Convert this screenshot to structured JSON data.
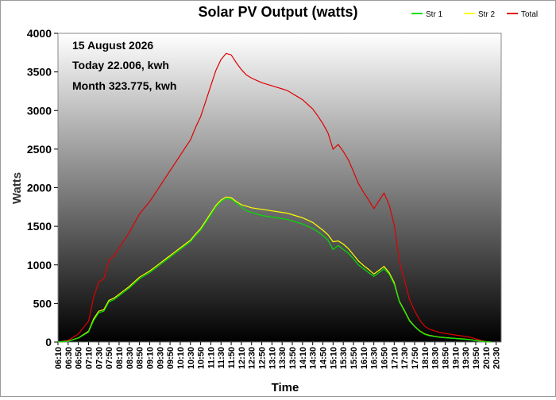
{
  "chart_data": {
    "type": "line",
    "title": "Solar PV Output (watts)",
    "xlabel": "Time",
    "ylabel": "Watts",
    "ylim": [
      0,
      4000
    ],
    "y_ticks": [
      0,
      500,
      1000,
      1500,
      2000,
      2500,
      3000,
      3500,
      4000
    ],
    "x_ticks": [
      "06:10",
      "06:30",
      "06:50",
      "07:10",
      "07:30",
      "07:50",
      "08:10",
      "08:30",
      "08:50",
      "09:10",
      "09:30",
      "09:50",
      "10:10",
      "10:30",
      "10:50",
      "11:10",
      "11:30",
      "11:50",
      "12:10",
      "12:30",
      "12:50",
      "13:10",
      "13:30",
      "13:50",
      "14:10",
      "14:30",
      "14:50",
      "15:10",
      "15:30",
      "15:50",
      "16:10",
      "16:30",
      "16:50",
      "17:10",
      "17:30",
      "17:50",
      "18:10",
      "18:30",
      "18:50",
      "19:10",
      "19:30",
      "19:50",
      "20:10",
      "20:30"
    ],
    "x_range": [
      "06:10",
      "20:40"
    ],
    "annotations": [
      "15 August 2026",
      "Today 22.006, kwh",
      "Month 323.775, kwh"
    ],
    "legend_position": "top-right",
    "grid": false,
    "background": "vertical gradient white (top) to black (bottom)",
    "series": [
      {
        "name": "Str 1",
        "color": "#00e000",
        "points": [
          [
            "06:10",
            0
          ],
          [
            "06:30",
            10
          ],
          [
            "06:50",
            50
          ],
          [
            "07:10",
            130
          ],
          [
            "07:20",
            280
          ],
          [
            "07:30",
            380
          ],
          [
            "07:40",
            400
          ],
          [
            "07:50",
            520
          ],
          [
            "08:00",
            550
          ],
          [
            "08:10",
            600
          ],
          [
            "08:20",
            650
          ],
          [
            "08:30",
            700
          ],
          [
            "08:40",
            760
          ],
          [
            "08:50",
            820
          ],
          [
            "09:00",
            860
          ],
          [
            "09:10",
            900
          ],
          [
            "09:20",
            950
          ],
          [
            "09:30",
            1000
          ],
          [
            "09:40",
            1050
          ],
          [
            "09:50",
            1100
          ],
          [
            "10:00",
            1150
          ],
          [
            "10:10",
            1200
          ],
          [
            "10:20",
            1250
          ],
          [
            "10:30",
            1300
          ],
          [
            "10:40",
            1380
          ],
          [
            "10:50",
            1450
          ],
          [
            "11:00",
            1550
          ],
          [
            "11:10",
            1650
          ],
          [
            "11:20",
            1750
          ],
          [
            "11:30",
            1820
          ],
          [
            "11:40",
            1860
          ],
          [
            "11:50",
            1850
          ],
          [
            "12:00",
            1800
          ],
          [
            "12:10",
            1750
          ],
          [
            "12:20",
            1700
          ],
          [
            "12:30",
            1680
          ],
          [
            "12:40",
            1660
          ],
          [
            "12:50",
            1640
          ],
          [
            "13:00",
            1630
          ],
          [
            "13:10",
            1620
          ],
          [
            "13:20",
            1610
          ],
          [
            "13:30",
            1600
          ],
          [
            "13:40",
            1590
          ],
          [
            "13:50",
            1570
          ],
          [
            "14:00",
            1550
          ],
          [
            "14:10",
            1530
          ],
          [
            "14:20",
            1500
          ],
          [
            "14:30",
            1470
          ],
          [
            "14:40",
            1430
          ],
          [
            "14:50",
            1380
          ],
          [
            "15:00",
            1320
          ],
          [
            "15:10",
            1200
          ],
          [
            "15:20",
            1250
          ],
          [
            "15:30",
            1200
          ],
          [
            "15:40",
            1150
          ],
          [
            "15:50",
            1080
          ],
          [
            "16:00",
            1000
          ],
          [
            "16:10",
            950
          ],
          [
            "16:20",
            900
          ],
          [
            "16:30",
            850
          ],
          [
            "16:40",
            900
          ],
          [
            "16:50",
            950
          ],
          [
            "17:00",
            880
          ],
          [
            "17:10",
            750
          ],
          [
            "17:20",
            520
          ],
          [
            "17:30",
            400
          ],
          [
            "17:40",
            270
          ],
          [
            "17:50",
            200
          ],
          [
            "18:00",
            140
          ],
          [
            "18:10",
            100
          ],
          [
            "18:20",
            80
          ],
          [
            "18:30",
            70
          ],
          [
            "18:40",
            60
          ],
          [
            "18:50",
            55
          ],
          [
            "19:00",
            50
          ],
          [
            "19:10",
            45
          ],
          [
            "19:20",
            40
          ],
          [
            "19:30",
            35
          ],
          [
            "19:40",
            30
          ],
          [
            "19:50",
            20
          ],
          [
            "20:00",
            10
          ],
          [
            "20:10",
            3
          ],
          [
            "20:20",
            0
          ]
        ]
      },
      {
        "name": "Str 2",
        "color": "#ffff00",
        "points": [
          [
            "06:10",
            0
          ],
          [
            "06:30",
            12
          ],
          [
            "06:50",
            55
          ],
          [
            "07:10",
            140
          ],
          [
            "07:20",
            300
          ],
          [
            "07:30",
            400
          ],
          [
            "07:40",
            420
          ],
          [
            "07:50",
            540
          ],
          [
            "08:00",
            570
          ],
          [
            "08:10",
            620
          ],
          [
            "08:20",
            670
          ],
          [
            "08:30",
            720
          ],
          [
            "08:40",
            780
          ],
          [
            "08:50",
            840
          ],
          [
            "09:00",
            880
          ],
          [
            "09:10",
            920
          ],
          [
            "09:20",
            970
          ],
          [
            "09:30",
            1020
          ],
          [
            "09:40",
            1070
          ],
          [
            "09:50",
            1120
          ],
          [
            "10:00",
            1170
          ],
          [
            "10:10",
            1220
          ],
          [
            "10:20",
            1270
          ],
          [
            "10:30",
            1320
          ],
          [
            "10:40",
            1400
          ],
          [
            "10:50",
            1470
          ],
          [
            "11:00",
            1570
          ],
          [
            "11:10",
            1670
          ],
          [
            "11:20",
            1770
          ],
          [
            "11:30",
            1840
          ],
          [
            "11:40",
            1880
          ],
          [
            "11:50",
            1870
          ],
          [
            "12:00",
            1820
          ],
          [
            "12:10",
            1780
          ],
          [
            "12:20",
            1760
          ],
          [
            "12:30",
            1740
          ],
          [
            "12:40",
            1730
          ],
          [
            "12:50",
            1720
          ],
          [
            "13:00",
            1710
          ],
          [
            "13:10",
            1700
          ],
          [
            "13:20",
            1690
          ],
          [
            "13:30",
            1680
          ],
          [
            "13:40",
            1670
          ],
          [
            "13:50",
            1650
          ],
          [
            "14:00",
            1630
          ],
          [
            "14:10",
            1610
          ],
          [
            "14:20",
            1580
          ],
          [
            "14:30",
            1550
          ],
          [
            "14:40",
            1500
          ],
          [
            "14:50",
            1450
          ],
          [
            "15:00",
            1390
          ],
          [
            "15:10",
            1300
          ],
          [
            "15:20",
            1310
          ],
          [
            "15:30",
            1270
          ],
          [
            "15:40",
            1210
          ],
          [
            "15:50",
            1130
          ],
          [
            "16:00",
            1050
          ],
          [
            "16:10",
            990
          ],
          [
            "16:20",
            940
          ],
          [
            "16:30",
            880
          ],
          [
            "16:40",
            930
          ],
          [
            "16:50",
            980
          ],
          [
            "17:00",
            900
          ],
          [
            "17:10",
            770
          ],
          [
            "17:20",
            530
          ],
          [
            "17:30",
            410
          ],
          [
            "17:40",
            280
          ],
          [
            "17:50",
            205
          ],
          [
            "18:00",
            145
          ],
          [
            "18:10",
            105
          ],
          [
            "18:20",
            85
          ],
          [
            "18:30",
            73
          ],
          [
            "18:40",
            63
          ],
          [
            "18:50",
            58
          ],
          [
            "19:00",
            52
          ],
          [
            "19:10",
            47
          ],
          [
            "19:20",
            42
          ],
          [
            "19:30",
            37
          ],
          [
            "19:40",
            31
          ],
          [
            "19:50",
            21
          ],
          [
            "20:00",
            11
          ],
          [
            "20:10",
            3
          ],
          [
            "20:20",
            0
          ]
        ]
      },
      {
        "name": "Total",
        "color": "#e00000",
        "points": [
          [
            "06:10",
            0
          ],
          [
            "06:30",
            22
          ],
          [
            "06:50",
            105
          ],
          [
            "07:10",
            270
          ],
          [
            "07:20",
            580
          ],
          [
            "07:30",
            780
          ],
          [
            "07:40",
            820
          ],
          [
            "07:50",
            1060
          ],
          [
            "08:00",
            1120
          ],
          [
            "08:10",
            1220
          ],
          [
            "08:20",
            1320
          ],
          [
            "08:30",
            1420
          ],
          [
            "08:40",
            1540
          ],
          [
            "08:50",
            1660
          ],
          [
            "09:00",
            1740
          ],
          [
            "09:10",
            1820
          ],
          [
            "09:20",
            1920
          ],
          [
            "09:30",
            2020
          ],
          [
            "09:40",
            2120
          ],
          [
            "09:50",
            2220
          ],
          [
            "10:00",
            2320
          ],
          [
            "10:10",
            2420
          ],
          [
            "10:20",
            2520
          ],
          [
            "10:30",
            2620
          ],
          [
            "10:40",
            2780
          ],
          [
            "10:50",
            2920
          ],
          [
            "11:00",
            3120
          ],
          [
            "11:10",
            3320
          ],
          [
            "11:20",
            3520
          ],
          [
            "11:30",
            3660
          ],
          [
            "11:40",
            3740
          ],
          [
            "11:50",
            3720
          ],
          [
            "12:00",
            3620
          ],
          [
            "12:10",
            3530
          ],
          [
            "12:20",
            3460
          ],
          [
            "12:30",
            3420
          ],
          [
            "12:40",
            3390
          ],
          [
            "12:50",
            3360
          ],
          [
            "13:00",
            3340
          ],
          [
            "13:10",
            3320
          ],
          [
            "13:20",
            3300
          ],
          [
            "13:30",
            3280
          ],
          [
            "13:40",
            3260
          ],
          [
            "13:50",
            3220
          ],
          [
            "14:00",
            3180
          ],
          [
            "14:10",
            3140
          ],
          [
            "14:20",
            3080
          ],
          [
            "14:30",
            3020
          ],
          [
            "14:40",
            2930
          ],
          [
            "14:50",
            2830
          ],
          [
            "15:00",
            2710
          ],
          [
            "15:10",
            2500
          ],
          [
            "15:20",
            2560
          ],
          [
            "15:30",
            2470
          ],
          [
            "15:40",
            2360
          ],
          [
            "15:50",
            2210
          ],
          [
            "16:00",
            2050
          ],
          [
            "16:10",
            1940
          ],
          [
            "16:20",
            1840
          ],
          [
            "16:30",
            1730
          ],
          [
            "16:40",
            1830
          ],
          [
            "16:50",
            1930
          ],
          [
            "17:00",
            1780
          ],
          [
            "17:10",
            1520
          ],
          [
            "17:20",
            1050
          ],
          [
            "17:30",
            810
          ],
          [
            "17:40",
            550
          ],
          [
            "17:50",
            405
          ],
          [
            "18:00",
            285
          ],
          [
            "18:10",
            205
          ],
          [
            "18:20",
            165
          ],
          [
            "18:30",
            143
          ],
          [
            "18:40",
            123
          ],
          [
            "18:50",
            113
          ],
          [
            "19:00",
            102
          ],
          [
            "19:10",
            92
          ],
          [
            "19:20",
            82
          ],
          [
            "19:30",
            72
          ],
          [
            "19:40",
            61
          ],
          [
            "19:50",
            41
          ],
          [
            "20:00",
            21
          ],
          [
            "20:10",
            6
          ],
          [
            "20:20",
            0
          ]
        ]
      }
    ]
  }
}
